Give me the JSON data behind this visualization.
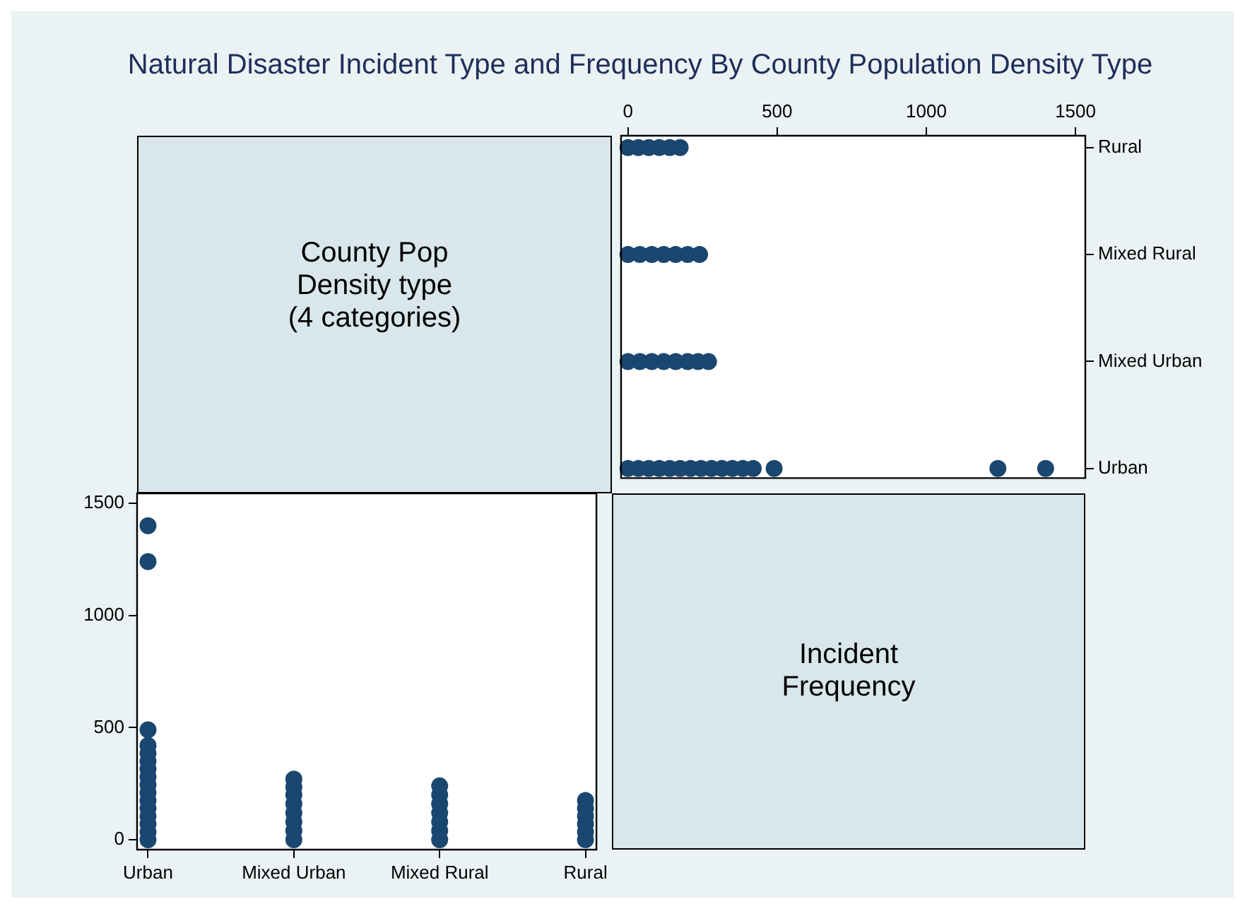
{
  "chart_data": [
    {
      "type": "other",
      "title": "Natural Disaster Incident Type and Frequency By County Population Density Type",
      "annotations": [
        "County Pop Density type (4 categories)"
      ]
    },
    {
      "type": "scatter",
      "orientation": "horizontal",
      "categories": [
        "Rural",
        "Mixed Rural",
        "Mixed Urban",
        "Urban"
      ],
      "xlim": [
        -23,
        1533
      ],
      "xticks": [
        0,
        500,
        1000,
        1500
      ],
      "marker": "circle",
      "series": [
        {
          "color": "#1a476f",
          "x": [
            "Rural",
            "Rural",
            "Rural",
            "Rural",
            "Rural",
            "Rural"
          ],
          "values": [
            0,
            35,
            70,
            105,
            140,
            175
          ]
        },
        {
          "color": "#1a476f",
          "x": [
            "Mixed Rural",
            "Mixed Rural",
            "Mixed Rural",
            "Mixed Rural",
            "Mixed Rural",
            "Mixed Rural",
            "Mixed Rural"
          ],
          "values": [
            0,
            40,
            80,
            120,
            160,
            200,
            240
          ]
        },
        {
          "color": "#1a476f",
          "x": [
            "Mixed Urban",
            "Mixed Urban",
            "Mixed Urban",
            "Mixed Urban",
            "Mixed Urban",
            "Mixed Urban",
            "Mixed Urban",
            "Mixed Urban"
          ],
          "values": [
            0,
            40,
            80,
            120,
            160,
            200,
            235,
            270
          ]
        },
        {
          "color": "#1a476f",
          "x": [
            "Urban",
            "Urban",
            "Urban",
            "Urban",
            "Urban",
            "Urban",
            "Urban",
            "Urban",
            "Urban",
            "Urban",
            "Urban",
            "Urban",
            "Urban",
            "Urban",
            "Urban",
            "Urban"
          ],
          "values": [
            0,
            35,
            70,
            105,
            140,
            175,
            210,
            245,
            280,
            315,
            350,
            385,
            420,
            490,
            1240,
            1400
          ]
        }
      ]
    },
    {
      "type": "scatter",
      "categories": [
        "Urban",
        "Mixed Urban",
        "Mixed Rural",
        "Rural"
      ],
      "ylim": [
        -44,
        1544
      ],
      "yticks": [
        0,
        500,
        1000,
        1500
      ],
      "marker": "circle",
      "series": [
        {
          "color": "#1a476f",
          "x": [
            "Urban",
            "Urban",
            "Urban",
            "Urban",
            "Urban",
            "Urban",
            "Urban",
            "Urban",
            "Urban",
            "Urban",
            "Urban",
            "Urban",
            "Urban",
            "Urban",
            "Urban",
            "Urban"
          ],
          "values": [
            0,
            35,
            70,
            105,
            140,
            175,
            210,
            245,
            280,
            315,
            350,
            385,
            420,
            490,
            1240,
            1400
          ]
        },
        {
          "color": "#1a476f",
          "x": [
            "Mixed Urban",
            "Mixed Urban",
            "Mixed Urban",
            "Mixed Urban",
            "Mixed Urban",
            "Mixed Urban",
            "Mixed Urban",
            "Mixed Urban"
          ],
          "values": [
            0,
            40,
            80,
            120,
            160,
            200,
            235,
            270
          ]
        },
        {
          "color": "#1a476f",
          "x": [
            "Mixed Rural",
            "Mixed Rural",
            "Mixed Rural",
            "Mixed Rural",
            "Mixed Rural",
            "Mixed Rural",
            "Mixed Rural"
          ],
          "values": [
            0,
            40,
            80,
            120,
            160,
            200,
            240
          ]
        },
        {
          "color": "#1a476f",
          "x": [
            "Rural",
            "Rural",
            "Rural",
            "Rural",
            "Rural",
            "Rural"
          ],
          "values": [
            0,
            35,
            70,
            105,
            140,
            175
          ]
        }
      ]
    },
    {
      "type": "other",
      "annotations": [
        "Incident Frequency"
      ]
    }
  ]
}
